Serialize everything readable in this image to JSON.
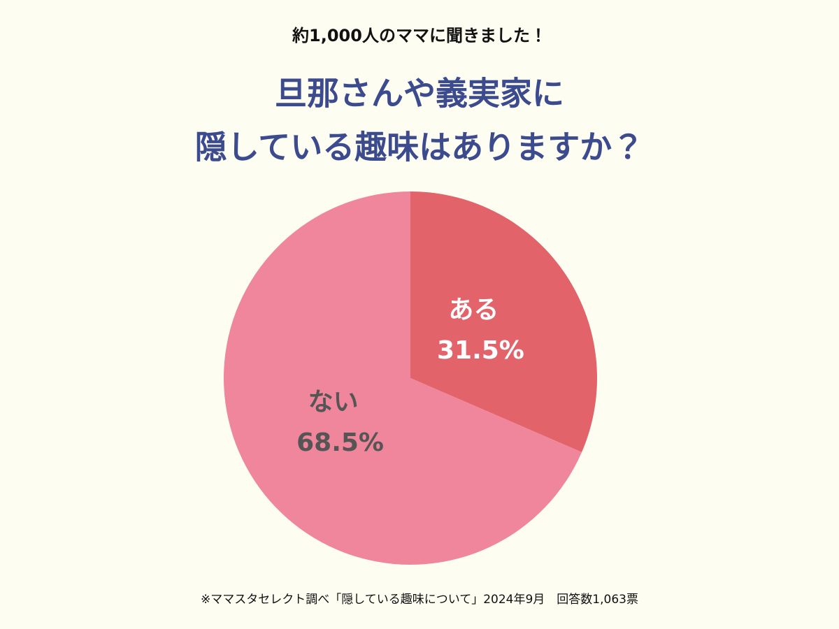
{
  "chart_data": {
    "type": "pie",
    "subtitle": "約1,000人のママに聞きました！",
    "title": [
      "旦那さんや義実家に",
      "隠している趣味はありますか？"
    ],
    "categories": [
      "ある",
      "ない"
    ],
    "values": [
      31.5,
      68.5
    ],
    "value_labels": [
      "31.5%",
      "68.5%"
    ],
    "colors": [
      "#e2646a",
      "#f0869b"
    ],
    "label_colors": [
      "#ffffff",
      "#555555"
    ],
    "note": "※ママスタセレクト調べ「隠している趣味について」2024年9月　回答数1,063票"
  }
}
